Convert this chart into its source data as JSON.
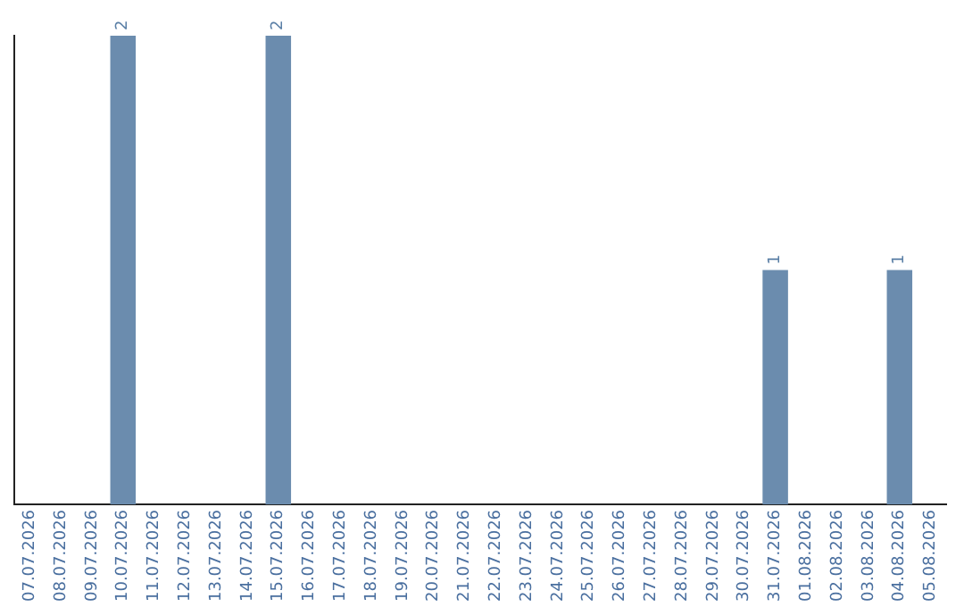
{
  "chart_data": {
    "type": "bar",
    "categories": [
      "07.07.2026",
      "08.07.2026",
      "09.07.2026",
      "10.07.2026",
      "11.07.2026",
      "12.07.2026",
      "13.07.2026",
      "14.07.2026",
      "15.07.2026",
      "16.07.2026",
      "17.07.2026",
      "18.07.2026",
      "19.07.2026",
      "20.07.2026",
      "21.07.2026",
      "22.07.2026",
      "23.07.2026",
      "24.07.2026",
      "25.07.2026",
      "26.07.2026",
      "27.07.2026",
      "28.07.2026",
      "29.07.2026",
      "30.07.2026",
      "31.07.2026",
      "01.08.2026",
      "02.08.2026",
      "03.08.2026",
      "04.08.2026",
      "05.08.2026"
    ],
    "values": [
      0,
      0,
      0,
      2,
      0,
      0,
      0,
      0,
      2,
      0,
      0,
      0,
      0,
      0,
      0,
      0,
      0,
      0,
      0,
      0,
      0,
      0,
      0,
      0,
      1,
      0,
      0,
      0,
      1,
      0
    ],
    "value_labels": [
      null,
      null,
      null,
      "2",
      null,
      null,
      null,
      null,
      "2",
      null,
      null,
      null,
      null,
      null,
      null,
      null,
      null,
      null,
      null,
      null,
      null,
      null,
      null,
      null,
      "1",
      null,
      null,
      null,
      "1",
      null
    ],
    "color": "#6b8cae"
  }
}
